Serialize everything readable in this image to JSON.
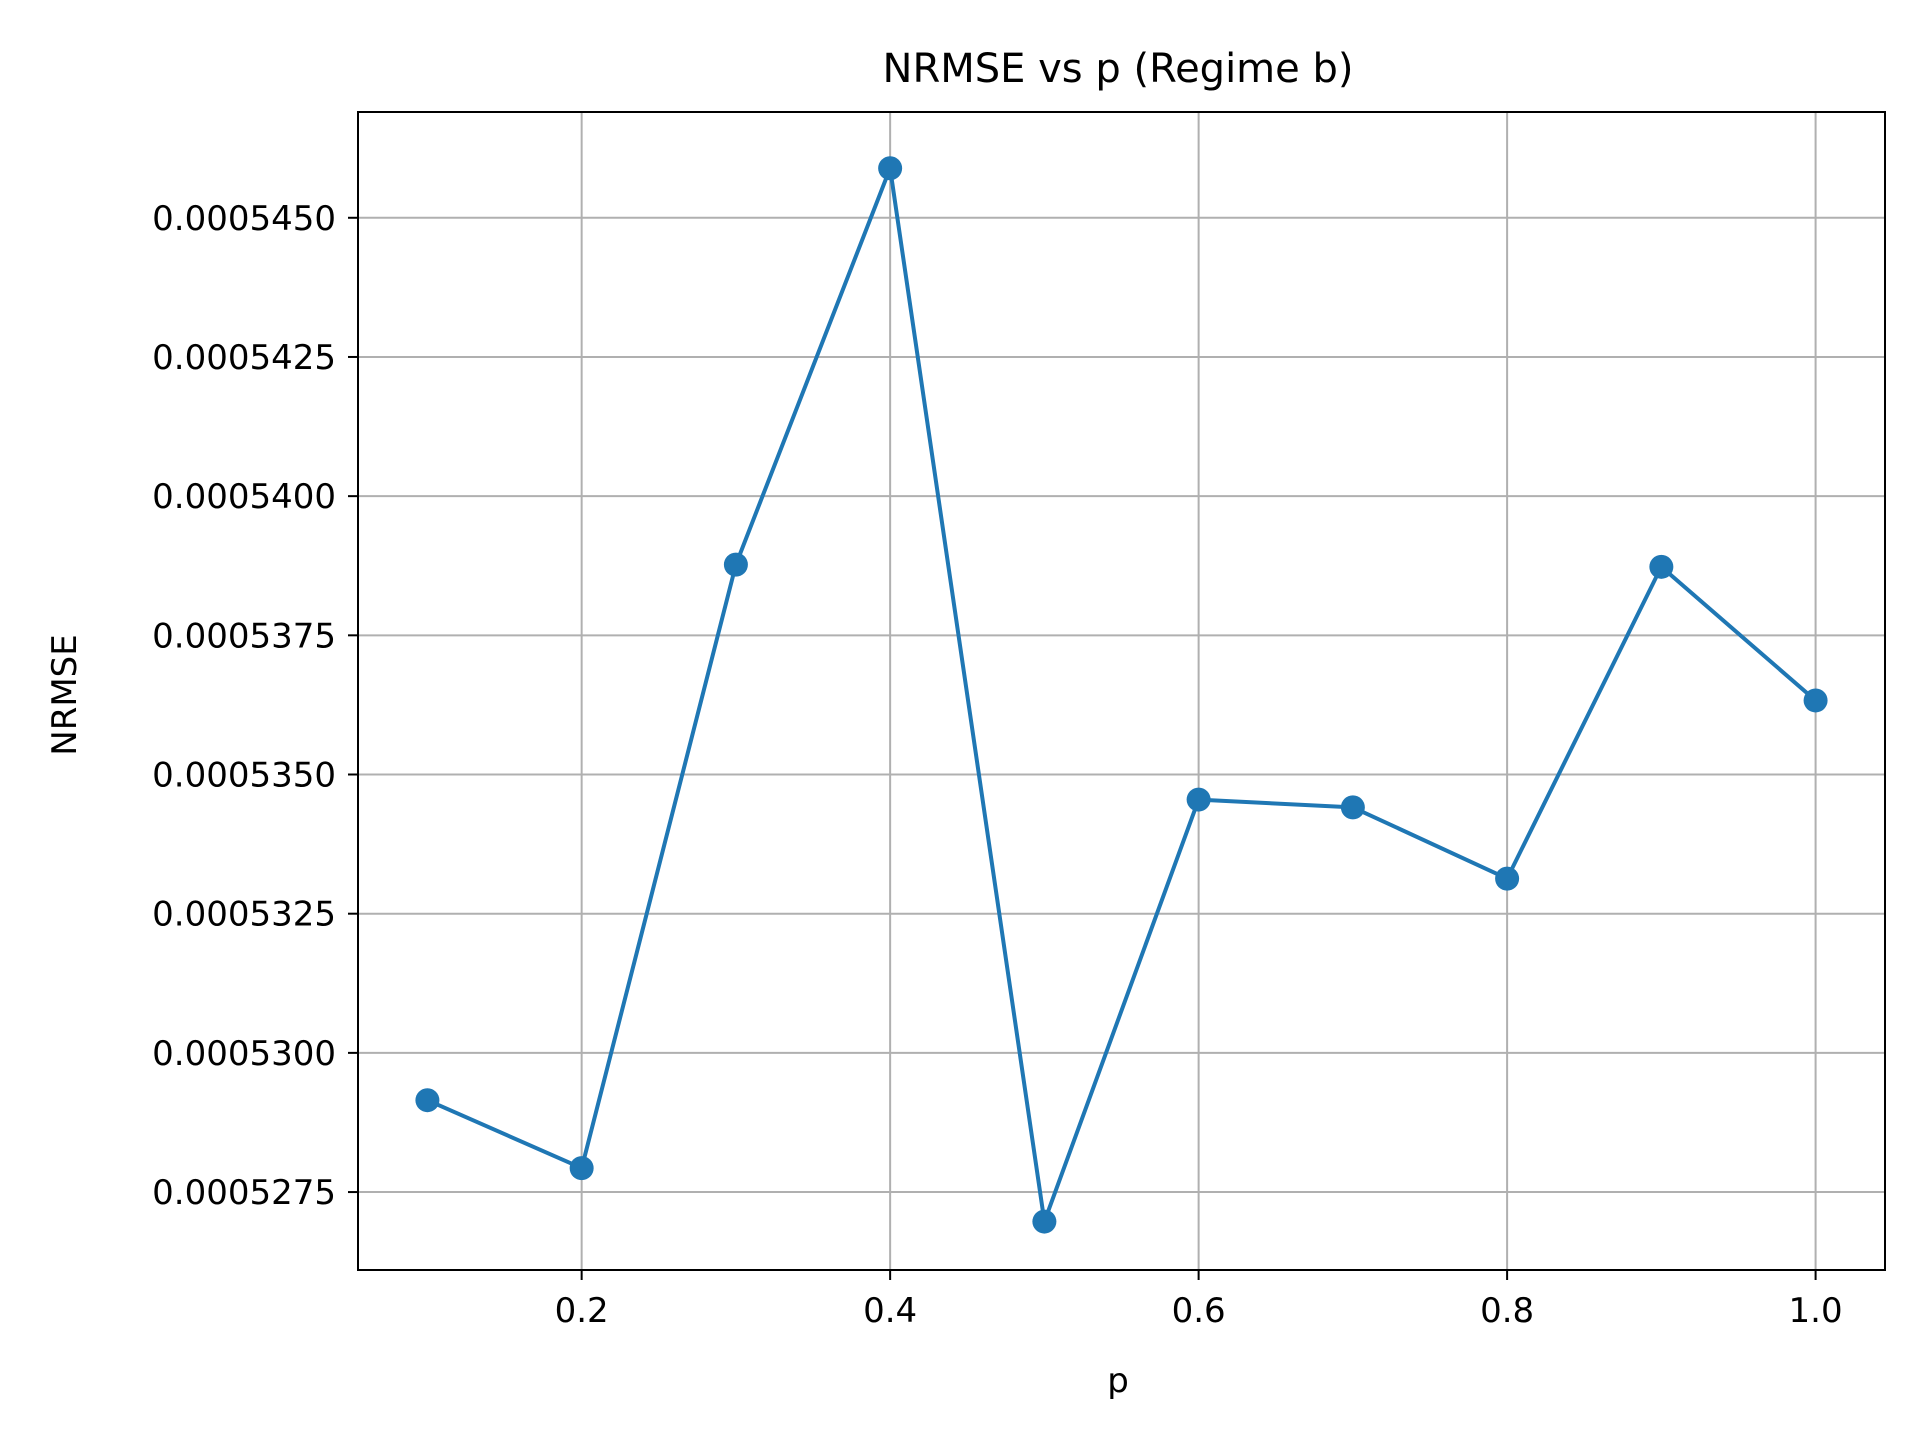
{
  "chart_data": {
    "type": "line",
    "title": "NRMSE vs p (Regime b)",
    "xlabel": "p",
    "ylabel": "NRMSE",
    "xlim": [
      0.055,
      1.045
    ],
    "ylim": [
      0.0005261,
      0.0005469
    ],
    "xticks": [
      0.2,
      0.4,
      0.6,
      0.8,
      1.0
    ],
    "xtick_labels": [
      "0.2",
      "0.4",
      "0.6",
      "0.8",
      "1.0"
    ],
    "yticks": [
      0.0005275,
      0.00053,
      0.0005325,
      0.000535,
      0.0005375,
      0.00054,
      0.0005425,
      0.000545
    ],
    "ytick_labels": [
      "0.0005275",
      "0.0005300",
      "0.0005325",
      "0.0005350",
      "0.0005375",
      "0.0005400",
      "0.0005425",
      "0.0005450"
    ],
    "grid": true,
    "series": [
      {
        "color": "#1f77b4",
        "marker": "circle",
        "x": [
          0.1,
          0.2,
          0.3,
          0.4,
          0.5,
          0.6,
          0.7,
          0.8,
          0.9,
          1.0
        ],
        "y": [
          0.00052915,
          0.00052793,
          0.00053877,
          0.00054589,
          0.00052697,
          0.00053455,
          0.00053441,
          0.00053313,
          0.00053873,
          0.00053633
        ]
      }
    ]
  }
}
